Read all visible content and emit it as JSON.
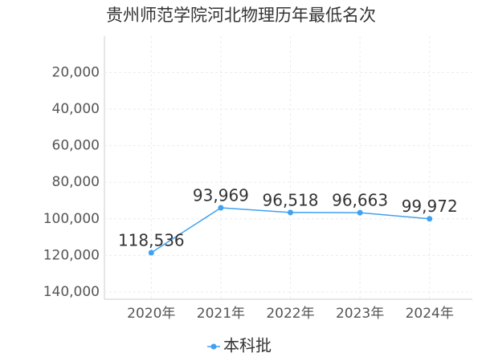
{
  "chart_data": {
    "type": "line",
    "title": "贵州师范学院河北物理历年最低名次",
    "categories": [
      "2020年",
      "2021年",
      "2022年",
      "2023年",
      "2024年"
    ],
    "series": [
      {
        "name": "本科批",
        "color": "#3fa1f1",
        "values": [
          118536,
          93969,
          96518,
          96663,
          99972
        ],
        "value_labels": [
          "118,536",
          "93,969",
          "96,518",
          "96,663",
          "99,972"
        ]
      }
    ],
    "ylim": [
      0,
      144000
    ],
    "y_inverted": true,
    "yticks": [
      {
        "value": 20000,
        "label": "20,000"
      },
      {
        "value": 40000,
        "label": "40,000"
      },
      {
        "value": 60000,
        "label": "60,000"
      },
      {
        "value": 80000,
        "label": "80,000"
      },
      {
        "value": 100000,
        "label": "100,000"
      },
      {
        "value": 120000,
        "label": "120,000"
      },
      {
        "value": 140000,
        "label": "140,000"
      }
    ],
    "grid": true
  }
}
